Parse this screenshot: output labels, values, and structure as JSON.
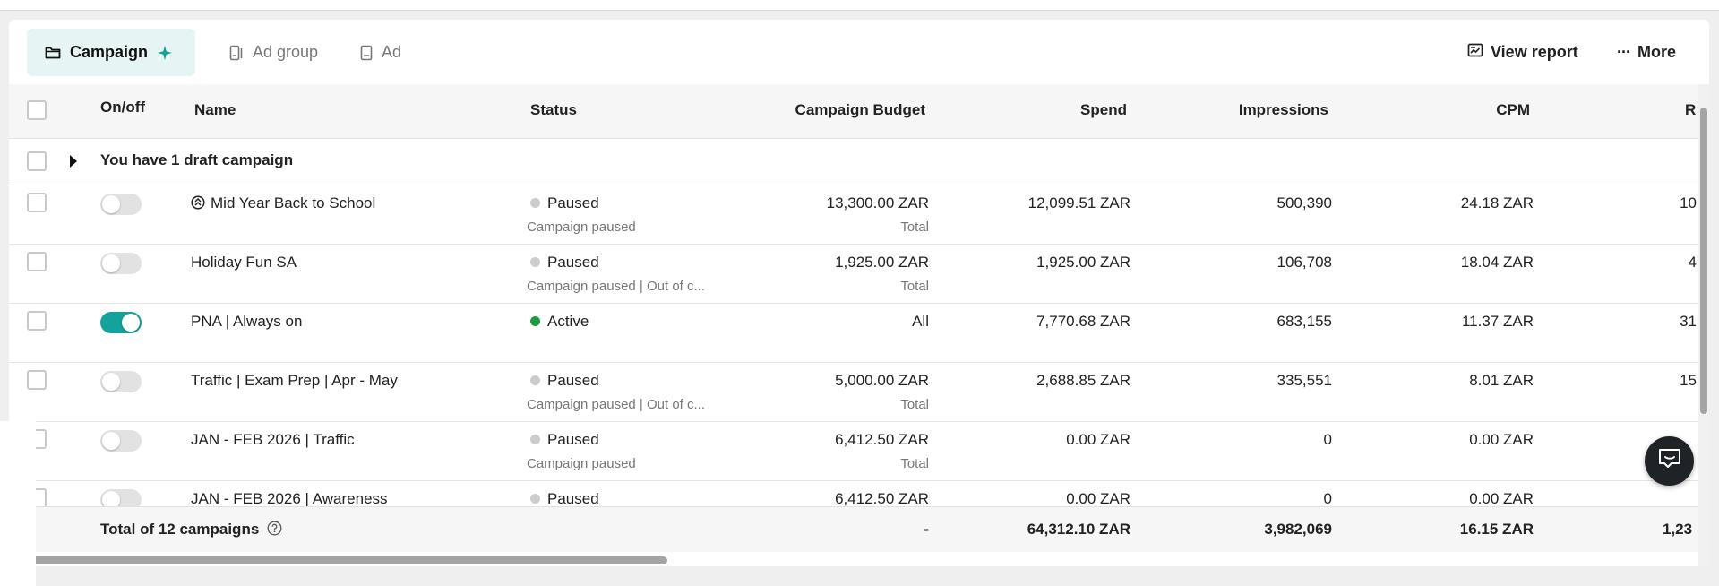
{
  "tabs": [
    {
      "label": "Campaign",
      "icon": "folder-icon",
      "active": true
    },
    {
      "label": "Ad group",
      "icon": "ad-group-icon",
      "active": false
    },
    {
      "label": "Ad",
      "icon": "ad-icon",
      "active": false
    }
  ],
  "toolbar": {
    "view_report": "View report",
    "more": "More"
  },
  "columns": {
    "on_off": "On/off",
    "name": "Name",
    "status": "Status",
    "budget": "Campaign Budget",
    "spend": "Spend",
    "impressions": "Impressions",
    "cpm": "CPM",
    "next": "R"
  },
  "draft_row": {
    "label": "You have 1 draft campaign"
  },
  "rows": [
    {
      "name": "Mid Year Back to School",
      "has_icon": true,
      "on": false,
      "status": "Paused",
      "status_sub": "Campaign paused",
      "budget": "13,300.00 ZAR",
      "budget_sub": "Total",
      "spend": "12,099.51 ZAR",
      "impressions": "500,390",
      "cpm": "24.18 ZAR",
      "next": "10"
    },
    {
      "name": "Holiday Fun SA",
      "has_icon": false,
      "on": false,
      "status": "Paused",
      "status_sub": "Campaign paused | Out of c...",
      "budget": "1,925.00 ZAR",
      "budget_sub": "Total",
      "spend": "1,925.00 ZAR",
      "impressions": "106,708",
      "cpm": "18.04 ZAR",
      "next": "4"
    },
    {
      "name": "PNA | Always on",
      "has_icon": false,
      "on": true,
      "status": "Active",
      "status_sub": "",
      "budget": "All",
      "budget_sub": "",
      "spend": "7,770.68 ZAR",
      "impressions": "683,155",
      "cpm": "11.37 ZAR",
      "next": "31"
    },
    {
      "name": "Traffic | Exam Prep | Apr - May",
      "has_icon": false,
      "on": false,
      "status": "Paused",
      "status_sub": "Campaign paused | Out of c...",
      "budget": "5,000.00 ZAR",
      "budget_sub": "Total",
      "spend": "2,688.85 ZAR",
      "impressions": "335,551",
      "cpm": "8.01 ZAR",
      "next": "15"
    },
    {
      "name": "JAN - FEB 2026 | Traffic",
      "has_icon": false,
      "on": false,
      "status": "Paused",
      "status_sub": "Campaign paused",
      "budget": "6,412.50 ZAR",
      "budget_sub": "Total",
      "spend": "0.00 ZAR",
      "impressions": "0",
      "cpm": "0.00 ZAR",
      "next": ""
    },
    {
      "name": "JAN - FEB 2026 | Awareness",
      "has_icon": false,
      "on": false,
      "status": "Paused",
      "status_sub": "",
      "budget": "6,412.50 ZAR",
      "budget_sub": "",
      "spend": "0.00 ZAR",
      "impressions": "0",
      "cpm": "0.00 ZAR",
      "next": ""
    }
  ],
  "footer": {
    "label": "Total of 12 campaigns",
    "budget": "-",
    "spend": "64,312.10 ZAR",
    "impressions": "3,982,069",
    "cpm": "16.15 ZAR",
    "next": "1,23"
  },
  "colors": {
    "accent": "#13a39a",
    "active_dot": "#1a9c3e",
    "paused_dot": "#cccccc",
    "tab_active_bg": "#e6f4f3"
  }
}
